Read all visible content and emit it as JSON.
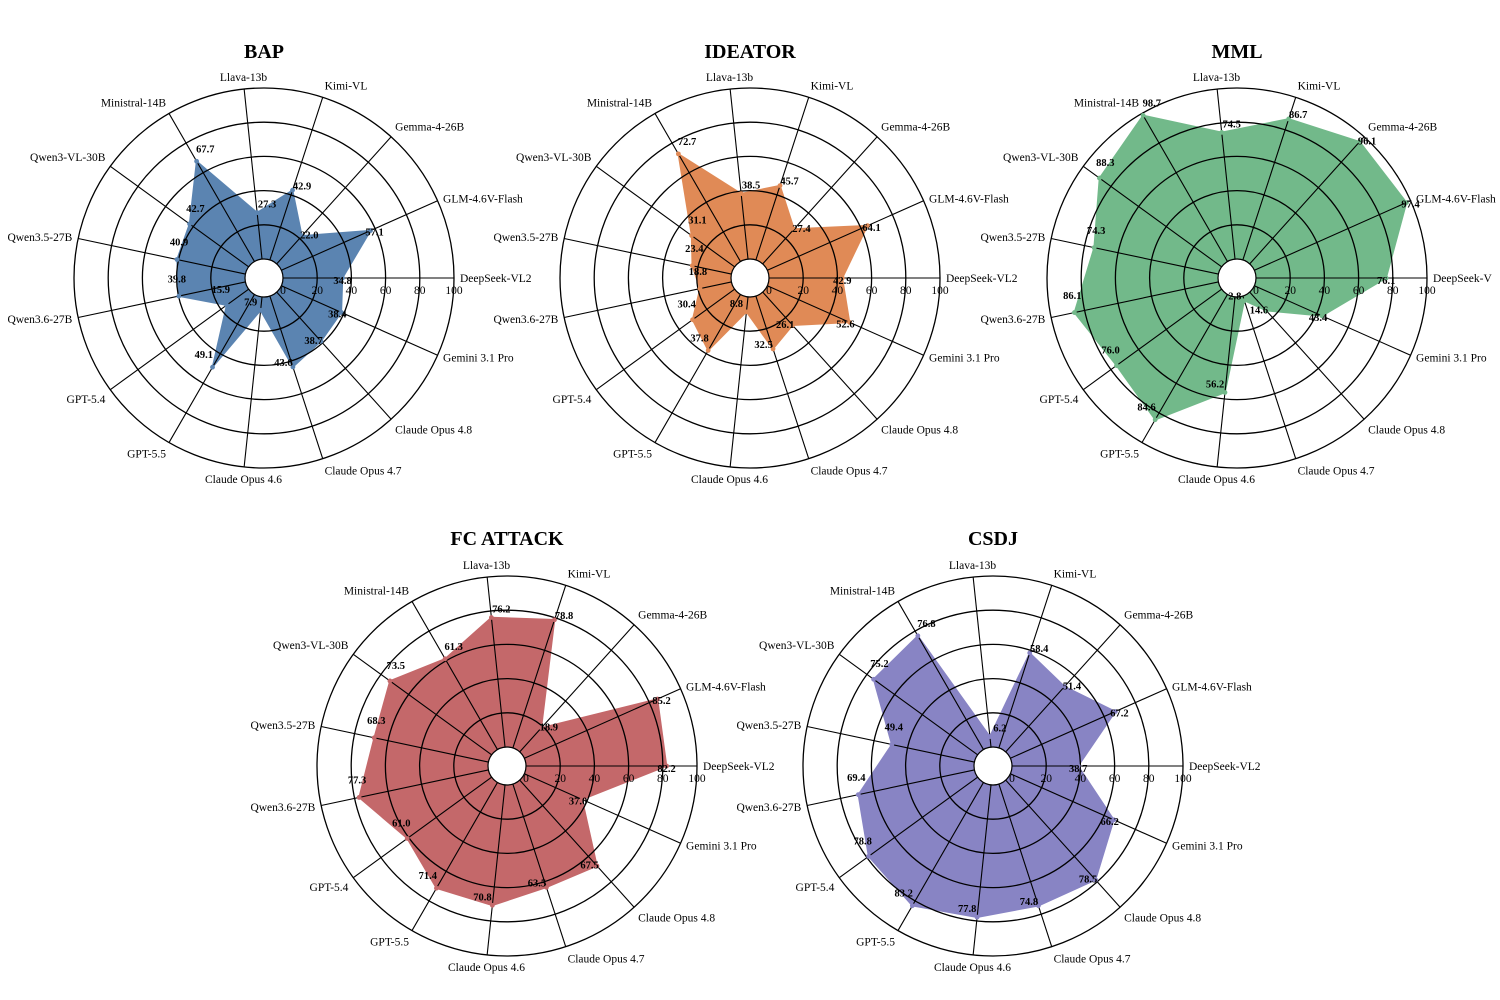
{
  "chart_data": [
    {
      "type": "radar",
      "title": "BAP",
      "color": "#5b84b1",
      "categories": [
        "DeepSeek-VL2",
        "GLM-4.6V-Flash",
        "Gemma-4-26B",
        "Kimi-VL",
        "Llava-13b",
        "Ministral-14B",
        "Qwen3-VL-30B",
        "Qwen3.5-27B",
        "Qwen3.6-27B",
        "GPT-5.4",
        "GPT-5.5",
        "Claude Opus 4.6",
        "Claude Opus 4.7",
        "Claude Opus 4.8",
        "Gemini 3.1 Pro"
      ],
      "values": [
        34.8,
        57.1,
        22.0,
        42.9,
        27.3,
        67.7,
        42.7,
        40.9,
        39.8,
        15.9,
        49.1,
        7.9,
        43.6,
        38.7,
        38.4
      ],
      "value_labels": [
        "34.8",
        "57.1",
        "22.0",
        "42.9",
        "27.3",
        "67.7",
        "42.7",
        "40.9",
        "39.8",
        "15.9",
        "49.1",
        "7.9",
        "43.6",
        "38.7",
        "38.4"
      ],
      "rlim": [
        0,
        100
      ],
      "ticks": [
        "0",
        "20",
        "40",
        "60",
        "80",
        "100"
      ],
      "grid": true
    },
    {
      "type": "radar",
      "title": "IDEATOR",
      "color": "#e08a56",
      "categories": [
        "DeepSeek-VL2",
        "GLM-4.6V-Flash",
        "Gemma-4-26B",
        "Kimi-VL",
        "Llava-13b",
        "Ministral-14B",
        "Qwen3-VL-30B",
        "Qwen3.5-27B",
        "Qwen3.6-27B",
        "GPT-5.4",
        "GPT-5.5",
        "Claude Opus 4.6",
        "Claude Opus 4.7",
        "Claude Opus 4.8",
        "Gemini 3.1 Pro"
      ],
      "values": [
        42.9,
        64.1,
        27.4,
        45.7,
        38.5,
        72.7,
        31.1,
        23.4,
        18.8,
        30.4,
        37.8,
        8.8,
        32.5,
        26.1,
        52.6
      ],
      "value_labels": [
        "42.9",
        "64.1",
        "27.4",
        "45.7",
        "38.5",
        "72.7",
        "31.1",
        "23.4",
        "18.8",
        "30.4",
        "37.8",
        "8.8",
        "32.5",
        "26.1",
        "52.6"
      ],
      "rlim": [
        0,
        100
      ],
      "ticks": [
        "0",
        "20",
        "40",
        "60",
        "80",
        "100"
      ],
      "grid": true
    },
    {
      "type": "radar",
      "title": "MML",
      "color": "#72b98a",
      "categories": [
        "DeepSeek-V",
        "GLM-4.6V-Flash",
        "Gemma-4-26B",
        "Kimi-VL",
        "Llava-13b",
        "Ministral-14B",
        "Qwen3-VL-30B",
        "Qwen3.5-27B",
        "Qwen3.6-27B",
        "GPT-5.4",
        "GPT-5.5",
        "Claude Opus 4.6",
        "Claude Opus 4.7",
        "Claude Opus 4.8",
        "Gemini 3.1 Pro"
      ],
      "values": [
        76.1,
        97.4,
        96.1,
        86.7,
        74.5,
        98.7,
        88.3,
        74.3,
        86.1,
        76.0,
        84.6,
        56.2,
        2.8,
        14.6,
        43.4
      ],
      "value_labels": [
        "76.1",
        "97.4",
        "96.1",
        "86.7",
        "74.5",
        "98.7",
        "88.3",
        "74.3",
        "86.1",
        "76.0",
        "84.6",
        "56.2",
        "2.8",
        "14.6",
        "43.4"
      ],
      "rlim": [
        0,
        100
      ],
      "ticks": [
        "0",
        "20",
        "40",
        "60",
        "80",
        "100"
      ],
      "grid": true
    },
    {
      "type": "radar",
      "title": "FC ATTACK",
      "color": "#c4686a",
      "categories": [
        "DeepSeek-VL2",
        "GLM-4.6V-Flash",
        "Gemma-4-26B",
        "Kimi-VL",
        "Llava-13b",
        "Ministral-14B",
        "Qwen3-VL-30B",
        "Qwen3.5-27B",
        "Qwen3.6-27B",
        "GPT-5.4",
        "GPT-5.5",
        "Claude Opus 4.6",
        "Claude Opus 4.7",
        "Claude Opus 4.8",
        "Gemini 3.1 Pro"
      ],
      "values": [
        82.2,
        85.2,
        18.9,
        78.8,
        76.2,
        61.3,
        73.5,
        68.3,
        77.3,
        61.0,
        71.4,
        70.8,
        63.5,
        67.5,
        37.0
      ],
      "value_labels": [
        "82.2",
        "85.2",
        "18.9",
        "78.8",
        "76.2",
        "61.3",
        "73.5",
        "68.3",
        "77.3",
        "61.0",
        "71.4",
        "70.8",
        "63.5",
        "67.5",
        "37.0"
      ],
      "rlim": [
        0,
        100
      ],
      "ticks": [
        "0",
        "20",
        "40",
        "60",
        "80",
        "100"
      ],
      "grid": true
    },
    {
      "type": "radar",
      "title": "CSDJ",
      "color": "#8884c4",
      "categories": [
        "DeepSeek-VL2",
        "GLM-4.6V-Flash",
        "Gemma-4-26B",
        "Kimi-VL",
        "Llava-13b",
        "Ministral-14B",
        "Qwen3-VL-30B",
        "Qwen3.5-27B",
        "Qwen3.6-27B",
        "GPT-5.4",
        "GPT-5.5",
        "Claude Opus 4.6",
        "Claude Opus 4.7",
        "Claude Opus 4.8",
        "Gemini 3.1 Pro"
      ],
      "values": [
        38.7,
        67.2,
        51.4,
        58.4,
        6.2,
        76.8,
        75.2,
        49.4,
        69.4,
        78.8,
        83.2,
        77.8,
        74.8,
        78.5,
        66.2
      ],
      "value_labels": [
        "38.7",
        "67.2",
        "51.4",
        "58.4",
        "6.2",
        "76.8",
        "75.2",
        "49.4",
        "69.4",
        "78.8",
        "83.2",
        "77.8",
        "74.8",
        "78.5",
        "66.2"
      ],
      "rlim": [
        0,
        100
      ],
      "ticks": [
        "0",
        "20",
        "40",
        "60",
        "80",
        "100"
      ],
      "grid": true
    }
  ]
}
